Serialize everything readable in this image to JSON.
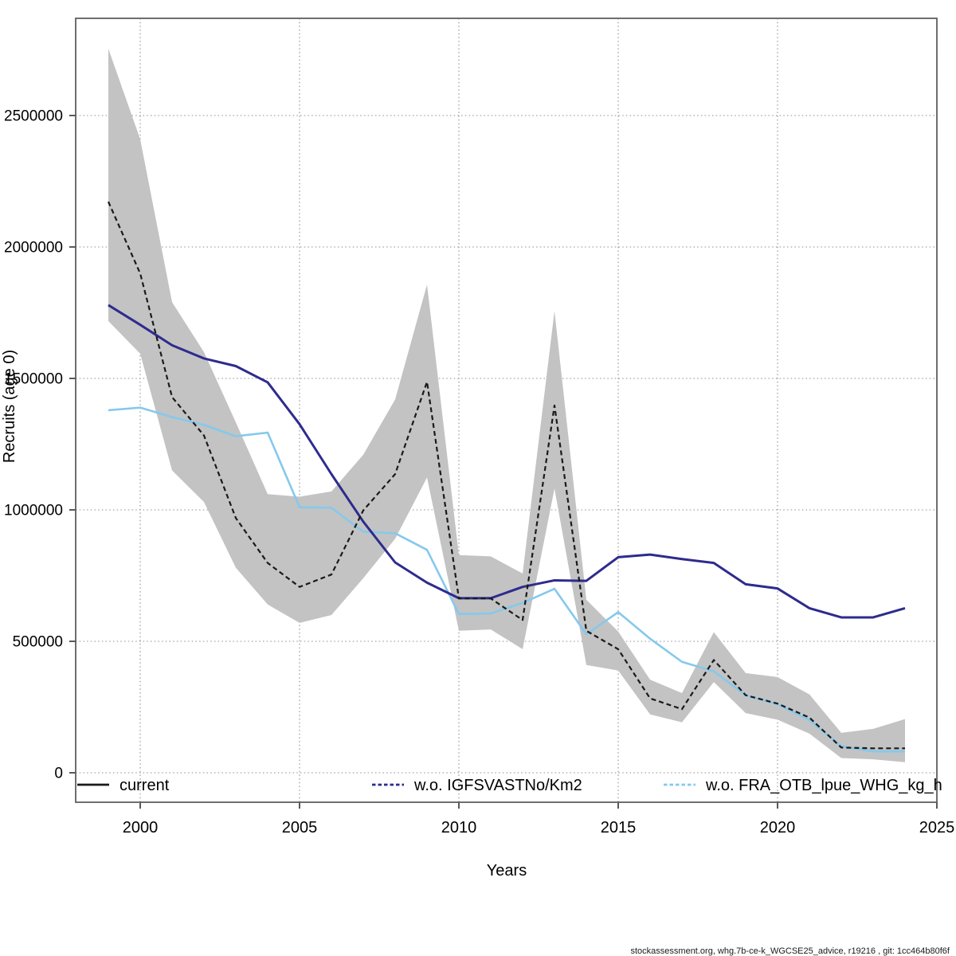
{
  "footer_credit": "stockassessment.org, whg.7b-ce-k_WGCSE25_advice, r19216 , git: 1cc464b80f6f",
  "chart_data": {
    "type": "line",
    "title": "",
    "xlabel": "Years",
    "ylabel": "Recruits (age 0)",
    "grid": true,
    "legend_position": "bottom-inside",
    "xlim": [
      1997.98,
      2025.05
    ],
    "ylim": [
      -112000,
      2870000
    ],
    "x_ticks": [
      2000,
      2005,
      2010,
      2015,
      2020,
      2025
    ],
    "y_ticks": [
      0,
      500000,
      1000000,
      1500000,
      2000000,
      2500000
    ],
    "y_tick_labels": [
      "0",
      "500000",
      "1000000",
      "1500000",
      "2000000",
      "2500000"
    ],
    "years": [
      1999,
      2000,
      2001,
      2002,
      2003,
      2004,
      2005,
      2006,
      2007,
      2008,
      2009,
      2010,
      2011,
      2012,
      2013,
      2014,
      2015,
      2016,
      2017,
      2018,
      2019,
      2020,
      2021,
      2022,
      2023,
      2024
    ],
    "series": [
      {
        "name": "current",
        "color": "#1a1a1a",
        "style": "dashed",
        "legend_style": "solid",
        "values": [
          2172000,
          1899000,
          1429000,
          1283000,
          969000,
          798000,
          707000,
          754000,
          998000,
          1136000,
          1487000,
          663000,
          663000,
          581000,
          1397000,
          540000,
          470000,
          283000,
          242000,
          429000,
          295000,
          263000,
          210000,
          96000,
          93000,
          93000
        ]
      },
      {
        "name": "w.o. IGFSVASTNo/Km2",
        "color": "#2e2b8e",
        "style": "solid",
        "legend_style": "dashed",
        "values": [
          1779000,
          1704000,
          1626000,
          1576000,
          1547000,
          1485000,
          1326000,
          1136000,
          955000,
          800000,
          723000,
          664000,
          664000,
          707000,
          732000,
          730000,
          820000,
          830000,
          813000,
          798000,
          717000,
          701000,
          626000,
          591000,
          591000,
          626000
        ]
      },
      {
        "name": "w.o. FRA_OTB_lpue_WHG_kg_h",
        "color": "#85c9ec",
        "style": "solid",
        "legend_style": "dashed",
        "values": [
          1379000,
          1389000,
          1353000,
          1323000,
          1280000,
          1294000,
          1010000,
          1008000,
          917000,
          911000,
          848000,
          604000,
          606000,
          646000,
          700000,
          527000,
          611000,
          510000,
          422000,
          386000,
          295000,
          261000,
          200000,
          101000,
          81000,
          81000
        ]
      }
    ],
    "band": {
      "for_series": "current",
      "color": "#c3c3c3",
      "lower": [
        1718000,
        1594000,
        1150000,
        1030000,
        780000,
        640000,
        570000,
        600000,
        740000,
        890000,
        1123000,
        540000,
        545000,
        470000,
        1081000,
        410000,
        389000,
        222000,
        192000,
        345000,
        227000,
        202000,
        149000,
        56000,
        51000,
        40000
      ],
      "upper": [
        2754000,
        2410000,
        1790000,
        1600000,
        1333000,
        1060000,
        1050000,
        1070000,
        1210000,
        1420000,
        1857000,
        828000,
        823000,
        758000,
        1757000,
        658000,
        537000,
        354000,
        303000,
        535000,
        379000,
        364000,
        298000,
        152000,
        167000,
        204000
      ]
    }
  }
}
